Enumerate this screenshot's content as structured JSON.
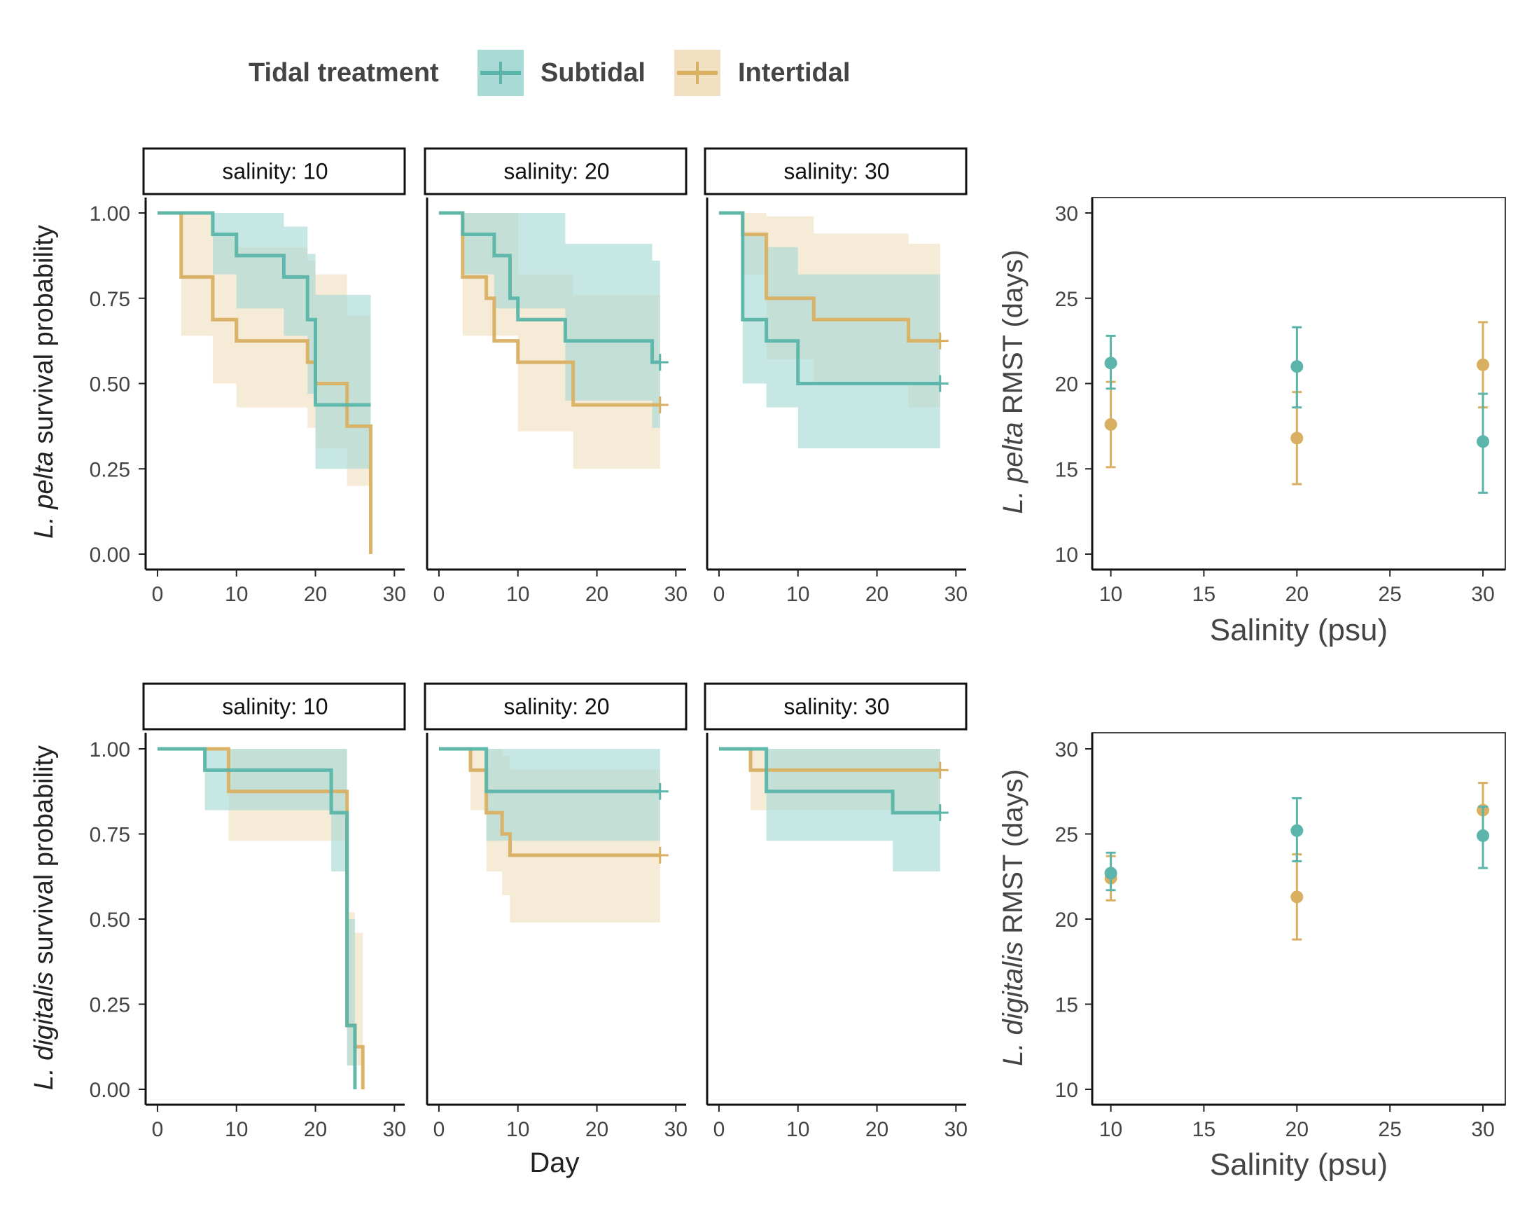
{
  "legend": {
    "title": "Tidal treatment",
    "items": [
      {
        "label": "Subtidal",
        "color": "#5BB5AA"
      },
      {
        "label": "Intertidal",
        "color": "#D9B062"
      }
    ]
  },
  "colors": {
    "subtidal": "#5BB5AA",
    "intertidal": "#D9B062",
    "subtidal_fill": "#A9DAD5",
    "intertidal_fill": "#F1E0C2"
  },
  "rows": [
    {
      "species_italic": "L. pelta",
      "survival_ylabel_rest": " survival probability",
      "rmst_ylabel_rest": " RMST (days)"
    },
    {
      "species_italic": "L. digitalis",
      "survival_ylabel_rest": " survival probability",
      "rmst_ylabel_rest": " RMST (days)"
    }
  ],
  "axis_labels": {
    "day": "Day",
    "salinity": "Salinity (psu)"
  },
  "chart_data": [
    {
      "type": "line",
      "subtype": "kaplan-meier step curves with confidence bands",
      "species": "L. pelta",
      "xlabel": "",
      "ylabel": "L. pelta survival probability",
      "xlim": [
        0,
        30
      ],
      "ylim": [
        0,
        1
      ],
      "x_ticks": [
        0,
        10,
        20,
        30
      ],
      "y_ticks": [
        "0.00",
        "0.25",
        "0.50",
        "0.75",
        "1.00"
      ],
      "facets": [
        {
          "strip": "salinity: 10",
          "series": [
            {
              "name": "Subtidal",
              "steps": [
                [
                  0,
                  1.0
                ],
                [
                  7,
                  0.9375
                ],
                [
                  10,
                  0.875
                ],
                [
                  16,
                  0.8125
                ],
                [
                  19,
                  0.6875
                ],
                [
                  20,
                  0.4375
                ],
                [
                  27,
                  0.4375
                ]
              ],
              "censor": [],
              "ci": [
                [
                  0,
                  1.0,
                  1.0
                ],
                [
                  7,
                  0.82,
                  1.0
                ],
                [
                  10,
                  0.72,
                  1.0
                ],
                [
                  16,
                  0.64,
                  0.96
                ],
                [
                  19,
                  0.47,
                  0.88
                ],
                [
                  20,
                  0.25,
                  0.76
                ],
                [
                  27,
                  0.25,
                  0.76
                ]
              ]
            },
            {
              "name": "Intertidal",
              "steps": [
                [
                  0,
                  1.0
                ],
                [
                  3,
                  0.8125
                ],
                [
                  7,
                  0.6875
                ],
                [
                  10,
                  0.625
                ],
                [
                  19,
                  0.5625
                ],
                [
                  20,
                  0.5
                ],
                [
                  24,
                  0.375
                ],
                [
                  27,
                  0.0
                ]
              ],
              "censor": [],
              "ci": [
                [
                  0,
                  1.0,
                  1.0
                ],
                [
                  3,
                  0.64,
                  1.0
                ],
                [
                  7,
                  0.5,
                  0.94
                ],
                [
                  10,
                  0.43,
                  0.9
                ],
                [
                  19,
                  0.37,
                  0.86
                ],
                [
                  20,
                  0.31,
                  0.82
                ],
                [
                  24,
                  0.2,
                  0.7
                ],
                [
                  27,
                  0.2,
                  0.7
                ]
              ]
            }
          ]
        },
        {
          "strip": "salinity: 20",
          "series": [
            {
              "name": "Subtidal",
              "steps": [
                [
                  0,
                  1.0
                ],
                [
                  3,
                  0.9375
                ],
                [
                  7,
                  0.875
                ],
                [
                  9,
                  0.75
                ],
                [
                  10,
                  0.6875
                ],
                [
                  16,
                  0.625
                ],
                [
                  27,
                  0.5625
                ],
                [
                  28,
                  0.5625
                ]
              ],
              "censor": [
                28
              ],
              "ci": [
                [
                  0,
                  1.0,
                  1.0
                ],
                [
                  3,
                  0.82,
                  1.0
                ],
                [
                  7,
                  0.72,
                  1.0
                ],
                [
                  16,
                  0.45,
                  0.91
                ],
                [
                  27,
                  0.37,
                  0.86
                ],
                [
                  28,
                  0.37,
                  0.86
                ]
              ]
            },
            {
              "name": "Intertidal",
              "steps": [
                [
                  0,
                  1.0
                ],
                [
                  3,
                  0.8125
                ],
                [
                  6,
                  0.75
                ],
                [
                  7,
                  0.625
                ],
                [
                  10,
                  0.5625
                ],
                [
                  17,
                  0.4375
                ],
                [
                  28,
                  0.4375
                ]
              ],
              "censor": [
                28
              ],
              "ci": [
                [
                  0,
                  1.0,
                  1.0
                ],
                [
                  3,
                  0.64,
                  1.0
                ],
                [
                  10,
                  0.36,
                  0.82
                ],
                [
                  17,
                  0.25,
                  0.76
                ],
                [
                  28,
                  0.25,
                  0.76
                ]
              ]
            }
          ]
        },
        {
          "strip": "salinity: 30",
          "series": [
            {
              "name": "Subtidal",
              "steps": [
                [
                  0,
                  1.0
                ],
                [
                  3,
                  0.6875
                ],
                [
                  6,
                  0.625
                ],
                [
                  10,
                  0.5
                ],
                [
                  28,
                  0.5
                ]
              ],
              "censor": [
                28
              ],
              "ci": [
                [
                  0,
                  1.0,
                  1.0
                ],
                [
                  3,
                  0.5,
                  0.94
                ],
                [
                  6,
                  0.43,
                  0.9
                ],
                [
                  10,
                  0.31,
                  0.82
                ],
                [
                  28,
                  0.31,
                  0.82
                ]
              ]
            },
            {
              "name": "Intertidal",
              "steps": [
                [
                  0,
                  1.0
                ],
                [
                  3,
                  0.9375
                ],
                [
                  6,
                  0.75
                ],
                [
                  12,
                  0.6875
                ],
                [
                  24,
                  0.625
                ],
                [
                  28,
                  0.625
                ]
              ],
              "censor": [
                28
              ],
              "ci": [
                [
                  0,
                  1.0,
                  1.0
                ],
                [
                  3,
                  0.82,
                  1.0
                ],
                [
                  6,
                  0.57,
                  0.99
                ],
                [
                  12,
                  0.5,
                  0.94
                ],
                [
                  24,
                  0.43,
                  0.91
                ],
                [
                  28,
                  0.43,
                  0.91
                ]
              ]
            }
          ]
        }
      ]
    },
    {
      "type": "scatter",
      "subtype": "point estimates with error bars",
      "species": "L. pelta",
      "xlabel": "Salinity (psu)",
      "ylabel": "L. pelta RMST (days)",
      "xlim": [
        9,
        31.2
      ],
      "ylim": [
        10,
        30
      ],
      "x_ticks": [
        10,
        15,
        20,
        25,
        30
      ],
      "y_ticks": [
        10,
        15,
        20,
        25,
        30
      ],
      "series": [
        {
          "name": "Subtidal",
          "points": [
            {
              "x": 10,
              "y": 21.2,
              "lo": 19.7,
              "hi": 22.8
            },
            {
              "x": 20,
              "y": 21.0,
              "lo": 18.6,
              "hi": 23.3
            },
            {
              "x": 30,
              "y": 16.6,
              "lo": 13.6,
              "hi": 19.4
            }
          ]
        },
        {
          "name": "Intertidal",
          "points": [
            {
              "x": 10,
              "y": 17.6,
              "lo": 15.1,
              "hi": 20.1
            },
            {
              "x": 20,
              "y": 16.8,
              "lo": 14.1,
              "hi": 19.5
            },
            {
              "x": 30,
              "y": 21.1,
              "lo": 18.6,
              "hi": 23.6
            }
          ]
        }
      ]
    },
    {
      "type": "line",
      "subtype": "kaplan-meier step curves with confidence bands",
      "species": "L. digitalis",
      "xlabel": "Day",
      "ylabel": "L. digitalis survival probability",
      "xlim": [
        0,
        30
      ],
      "ylim": [
        0,
        1
      ],
      "x_ticks": [
        0,
        10,
        20,
        30
      ],
      "y_ticks": [
        "0.00",
        "0.25",
        "0.50",
        "0.75",
        "1.00"
      ],
      "facets": [
        {
          "strip": "salinity: 10",
          "series": [
            {
              "name": "Subtidal",
              "steps": [
                [
                  0,
                  1.0
                ],
                [
                  6,
                  0.9375
                ],
                [
                  22,
                  0.8125
                ],
                [
                  24,
                  0.1875
                ],
                [
                  25,
                  0.0
                ]
              ],
              "censor": [],
              "ci": [
                [
                  0,
                  1.0,
                  1.0
                ],
                [
                  6,
                  0.82,
                  1.0
                ],
                [
                  22,
                  0.64,
                  1.0
                ],
                [
                  24,
                  0.07,
                  0.5
                ],
                [
                  25,
                  0.07,
                  0.5
                ]
              ]
            },
            {
              "name": "Intertidal",
              "steps": [
                [
                  0,
                  1.0
                ],
                [
                  9,
                  0.875
                ],
                [
                  24,
                  0.1875
                ],
                [
                  25,
                  0.125
                ],
                [
                  26,
                  0.0
                ]
              ],
              "censor": [],
              "ci": [
                [
                  0,
                  1.0,
                  1.0
                ],
                [
                  9,
                  0.73,
                  1.0
                ],
                [
                  24,
                  0.07,
                  0.52
                ],
                [
                  25,
                  0.07,
                  0.46
                ],
                [
                  26,
                  0.07,
                  0.46
                ]
              ]
            }
          ]
        },
        {
          "strip": "salinity: 20",
          "series": [
            {
              "name": "Subtidal",
              "steps": [
                [
                  0,
                  1.0
                ],
                [
                  6,
                  0.875
                ],
                [
                  28,
                  0.875
                ]
              ],
              "censor": [
                28
              ],
              "ci": [
                [
                  0,
                  1.0,
                  1.0
                ],
                [
                  6,
                  0.73,
                  1.0
                ],
                [
                  28,
                  0.73,
                  1.0
                ]
              ]
            },
            {
              "name": "Intertidal",
              "steps": [
                [
                  0,
                  1.0
                ],
                [
                  4,
                  0.9375
                ],
                [
                  6,
                  0.8125
                ],
                [
                  8,
                  0.75
                ],
                [
                  9,
                  0.6875
                ],
                [
                  28,
                  0.6875
                ]
              ],
              "censor": [
                28
              ],
              "ci": [
                [
                  0,
                  1.0,
                  1.0
                ],
                [
                  4,
                  0.82,
                  1.0
                ],
                [
                  6,
                  0.64,
                  1.0
                ],
                [
                  8,
                  0.57,
                  0.98
                ],
                [
                  9,
                  0.49,
                  0.94
                ],
                [
                  28,
                  0.49,
                  0.94
                ]
              ]
            }
          ]
        },
        {
          "strip": "salinity: 30",
          "series": [
            {
              "name": "Subtidal",
              "steps": [
                [
                  0,
                  1.0
                ],
                [
                  6,
                  0.875
                ],
                [
                  22,
                  0.8125
                ],
                [
                  28,
                  0.8125
                ]
              ],
              "censor": [
                28
              ],
              "ci": [
                [
                  0,
                  1.0,
                  1.0
                ],
                [
                  6,
                  0.73,
                  1.0
                ],
                [
                  22,
                  0.64,
                  1.0
                ],
                [
                  28,
                  0.64,
                  1.0
                ]
              ]
            },
            {
              "name": "Intertidal",
              "steps": [
                [
                  0,
                  1.0
                ],
                [
                  4,
                  0.9375
                ],
                [
                  28,
                  0.9375
                ]
              ],
              "censor": [
                28
              ],
              "ci": [
                [
                  0,
                  1.0,
                  1.0
                ],
                [
                  4,
                  0.82,
                  1.0
                ],
                [
                  28,
                  0.82,
                  1.0
                ]
              ]
            }
          ]
        }
      ]
    },
    {
      "type": "scatter",
      "subtype": "point estimates with error bars",
      "species": "L. digitalis",
      "xlabel": "Salinity (psu)",
      "ylabel": "L. digitalis RMST (days)",
      "xlim": [
        9,
        31.2
      ],
      "ylim": [
        10,
        30
      ],
      "x_ticks": [
        10,
        15,
        20,
        25,
        30
      ],
      "y_ticks": [
        10,
        15,
        20,
        25,
        30
      ],
      "series": [
        {
          "name": "Subtidal",
          "points": [
            {
              "x": 10,
              "y": 22.7,
              "lo": 21.7,
              "hi": 23.9
            },
            {
              "x": 20,
              "y": 25.2,
              "lo": 23.4,
              "hi": 27.1
            },
            {
              "x": 30,
              "y": 24.9,
              "lo": 23.0,
              "hi": 26.6
            }
          ]
        },
        {
          "name": "Intertidal",
          "points": [
            {
              "x": 10,
              "y": 22.4,
              "lo": 21.1,
              "hi": 23.7
            },
            {
              "x": 20,
              "y": 21.3,
              "lo": 18.8,
              "hi": 23.8
            },
            {
              "x": 30,
              "y": 26.4,
              "lo": 24.9,
              "hi": 28.0
            }
          ]
        }
      ]
    }
  ]
}
